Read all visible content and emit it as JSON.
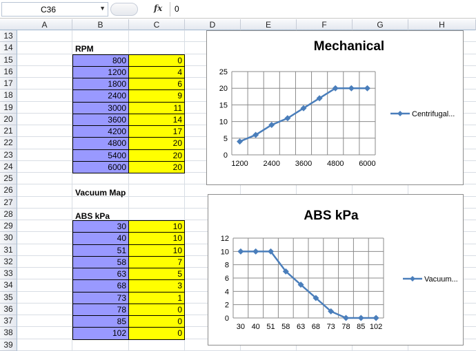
{
  "formula_bar": {
    "name_box": "C36",
    "fx_label": "fx",
    "formula": "0"
  },
  "columns": [
    "A",
    "B",
    "C",
    "D",
    "E",
    "F",
    "G",
    "H"
  ],
  "rows": [
    "13",
    "14",
    "15",
    "16",
    "17",
    "18",
    "19",
    "20",
    "21",
    "22",
    "23",
    "24",
    "25",
    "26",
    "27",
    "28",
    "29",
    "30",
    "31",
    "32",
    "33",
    "34",
    "35",
    "36",
    "37",
    "38",
    "39"
  ],
  "rpm_table": {
    "label": "RPM",
    "rows": [
      [
        "800",
        "0"
      ],
      [
        "1200",
        "4"
      ],
      [
        "1800",
        "6"
      ],
      [
        "2400",
        "9"
      ],
      [
        "3000",
        "11"
      ],
      [
        "3600",
        "14"
      ],
      [
        "4200",
        "17"
      ],
      [
        "4800",
        "20"
      ],
      [
        "5400",
        "20"
      ],
      [
        "6000",
        "20"
      ]
    ]
  },
  "vacuum_map_label": "Vacuum Map",
  "abs_table": {
    "label": "ABS kPa",
    "rows": [
      [
        "30",
        "10"
      ],
      [
        "40",
        "10"
      ],
      [
        "51",
        "10"
      ],
      [
        "58",
        "7"
      ],
      [
        "63",
        "5"
      ],
      [
        "68",
        "3"
      ],
      [
        "73",
        "1"
      ],
      [
        "78",
        "0"
      ],
      [
        "85",
        "0"
      ],
      [
        "102",
        "0"
      ]
    ]
  },
  "chart_data": [
    {
      "type": "line",
      "title": "Mechanical",
      "categories": [
        "1200",
        "1800",
        "2400",
        "3000",
        "3600",
        "4200",
        "4800",
        "5400",
        "6000"
      ],
      "x_tick_labels": [
        "1200",
        "2400",
        "3600",
        "4800",
        "6000"
      ],
      "series": [
        {
          "name": "Centrifugal...",
          "values": [
            4,
            6,
            9,
            11,
            14,
            17,
            20,
            20,
            20
          ],
          "color": "#4a7ebb"
        }
      ],
      "ylim": [
        0,
        25
      ],
      "y_ticks": [
        "0",
        "5",
        "10",
        "15",
        "20",
        "25"
      ],
      "grid": true,
      "legend": "right"
    },
    {
      "type": "line",
      "title": "ABS kPa",
      "categories": [
        "30",
        "40",
        "51",
        "58",
        "63",
        "68",
        "73",
        "78",
        "85",
        "102"
      ],
      "x_tick_labels": [
        "30",
        "40",
        "51",
        "58",
        "63",
        "68",
        "73",
        "78",
        "85",
        "102"
      ],
      "series": [
        {
          "name": "Vacuum...",
          "values": [
            10,
            10,
            10,
            7,
            5,
            3,
            1,
            0,
            0,
            0
          ],
          "color": "#4a7ebb"
        }
      ],
      "ylim": [
        0,
        12
      ],
      "y_ticks": [
        "0",
        "2",
        "4",
        "6",
        "8",
        "10",
        "12"
      ],
      "grid": true,
      "legend": "right"
    }
  ]
}
